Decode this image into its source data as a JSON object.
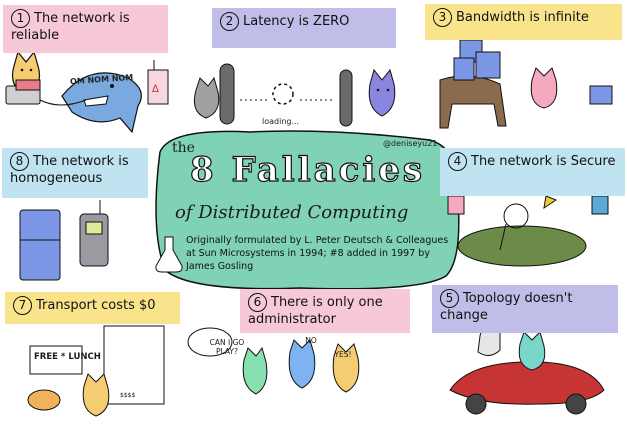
{
  "handle": "@deniseyu21",
  "title": {
    "prefix": "the",
    "main": "8 Fallacies",
    "subtitle": "of Distributed Computing",
    "origin": "Originally formulated by L. Peter Deutsch & Colleagues at Sun Microsystems in 1994; #8 added in 1997 by James Gosling"
  },
  "fallacies": [
    {
      "n": "1",
      "text": "The network is reliable"
    },
    {
      "n": "2",
      "text": "Latency is ZERO"
    },
    {
      "n": "3",
      "text": "Bandwidth is infinite"
    },
    {
      "n": "4",
      "text": "The network is Secure"
    },
    {
      "n": "5",
      "text": "Topology doesn't change"
    },
    {
      "n": "6",
      "text": "There is only one administrator"
    },
    {
      "n": "7",
      "text": "Transport costs $0"
    },
    {
      "n": "8",
      "text": "The network is homogeneous"
    }
  ],
  "captions": {
    "nom": "OM NOM NOM",
    "loading": "loading...",
    "can_i_go_play": "CAN I GO PLAY?",
    "no": "NO",
    "yes": "YES!",
    "free_lunch": "FREE * LUNCH",
    "receipt_total": "$$$$"
  },
  "colors": {
    "pink": "#f7c9d6",
    "lavender": "#c0bde8",
    "yellow": "#f9e48b",
    "sky": "#bfe3f0",
    "mint": "#7fd2b4"
  }
}
